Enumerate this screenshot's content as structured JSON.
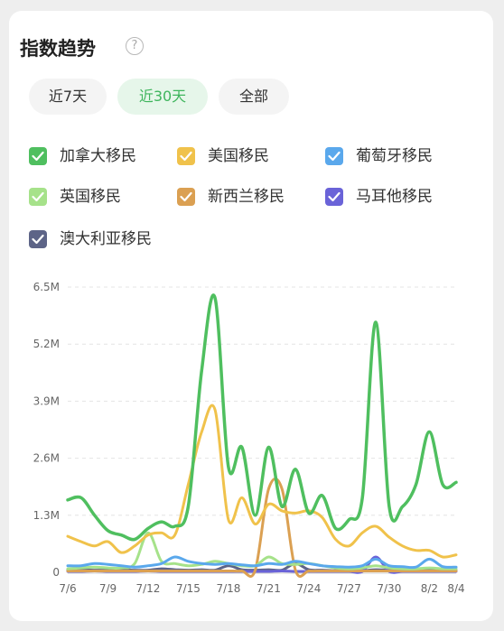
{
  "header": {
    "title": "指数趋势",
    "help_icon": "?"
  },
  "tabs": [
    {
      "label": "近7天",
      "active": false
    },
    {
      "label": "近30天",
      "active": true
    },
    {
      "label": "全部",
      "active": false
    }
  ],
  "legend": [
    {
      "label": "加拿大移民",
      "color": "#4fbf5f",
      "checked": true
    },
    {
      "label": "美国移民",
      "color": "#f0c24b",
      "checked": true
    },
    {
      "label": "葡萄牙移民",
      "color": "#5aa8ec",
      "checked": true
    },
    {
      "label": "英国移民",
      "color": "#a6e28a",
      "checked": true
    },
    {
      "label": "新西兰移民",
      "color": "#dba052",
      "checked": true
    },
    {
      "label": "马耳他移民",
      "color": "#6a63d8",
      "checked": true
    },
    {
      "label": "澳大利亚移民",
      "color": "#5d6487",
      "checked": true
    }
  ],
  "chart_data": {
    "type": "line",
    "categories": [
      "7/6",
      "7/7",
      "7/8",
      "7/9",
      "7/10",
      "7/11",
      "7/12",
      "7/13",
      "7/14",
      "7/15",
      "7/16",
      "7/17",
      "7/18",
      "7/19",
      "7/20",
      "7/21",
      "7/22",
      "7/23",
      "7/24",
      "7/25",
      "7/26",
      "7/27",
      "7/28",
      "7/29",
      "7/30",
      "7/31",
      "8/1",
      "8/2",
      "8/3",
      "8/4"
    ],
    "x_tick_labels": [
      "7/6",
      "7/9",
      "7/12",
      "7/15",
      "7/18",
      "7/21",
      "7/24",
      "7/27",
      "7/30",
      "8/2",
      "8/4"
    ],
    "y_tick_labels": [
      "0",
      "1.3M",
      "2.6M",
      "3.9M",
      "5.2M",
      "6.5M"
    ],
    "ylim": [
      0,
      6500000
    ],
    "grid": true,
    "series": [
      {
        "name": "加拿大移民",
        "values": [
          1650000,
          1700000,
          1300000,
          950000,
          850000,
          750000,
          1000000,
          1150000,
          1050000,
          1500000,
          4600000,
          6250000,
          2400000,
          2850000,
          1300000,
          2850000,
          1500000,
          2350000,
          1350000,
          1750000,
          1000000,
          1200000,
          1700000,
          5700000,
          1500000,
          1500000,
          2000000,
          3200000,
          2000000,
          2050000
        ]
      },
      {
        "name": "美国移民",
        "values": [
          820000,
          700000,
          600000,
          700000,
          450000,
          600000,
          850000,
          900000,
          850000,
          2000000,
          3200000,
          3700000,
          1200000,
          1700000,
          1100000,
          1550000,
          1400000,
          1350000,
          1400000,
          1250000,
          750000,
          600000,
          900000,
          1050000,
          800000,
          600000,
          500000,
          500000,
          350000,
          400000
        ]
      },
      {
        "name": "葡萄牙移民",
        "values": [
          150000,
          150000,
          200000,
          180000,
          150000,
          120000,
          150000,
          200000,
          350000,
          250000,
          200000,
          180000,
          200000,
          170000,
          150000,
          200000,
          180000,
          250000,
          200000,
          150000,
          130000,
          120000,
          150000,
          300000,
          150000,
          130000,
          120000,
          300000,
          130000,
          120000
        ]
      },
      {
        "name": "英国移民",
        "values": [
          80000,
          100000,
          120000,
          100000,
          100000,
          200000,
          900000,
          250000,
          200000,
          150000,
          180000,
          250000,
          200000,
          150000,
          150000,
          350000,
          200000,
          180000,
          200000,
          150000,
          100000,
          80000,
          100000,
          150000,
          100000,
          80000,
          80000,
          100000,
          80000,
          80000
        ]
      },
      {
        "name": "新西兰移民",
        "values": [
          30000,
          30000,
          30000,
          30000,
          30000,
          30000,
          30000,
          30000,
          30000,
          30000,
          30000,
          30000,
          30000,
          30000,
          50000,
          1900000,
          1900000,
          50000,
          30000,
          30000,
          30000,
          30000,
          30000,
          30000,
          30000,
          30000,
          30000,
          30000,
          30000,
          30000
        ]
      },
      {
        "name": "马耳他移民",
        "values": [
          20000,
          20000,
          30000,
          20000,
          20000,
          20000,
          30000,
          20000,
          20000,
          20000,
          20000,
          20000,
          20000,
          20000,
          20000,
          20000,
          30000,
          20000,
          20000,
          20000,
          20000,
          20000,
          20000,
          350000,
          20000,
          20000,
          20000,
          20000,
          20000,
          20000
        ]
      },
      {
        "name": "澳大利亚移民",
        "values": [
          50000,
          60000,
          50000,
          50000,
          60000,
          50000,
          50000,
          80000,
          60000,
          50000,
          60000,
          50000,
          150000,
          60000,
          50000,
          60000,
          50000,
          200000,
          60000,
          50000,
          40000,
          50000,
          40000,
          60000,
          50000,
          40000,
          50000,
          60000,
          40000,
          40000
        ]
      }
    ]
  }
}
